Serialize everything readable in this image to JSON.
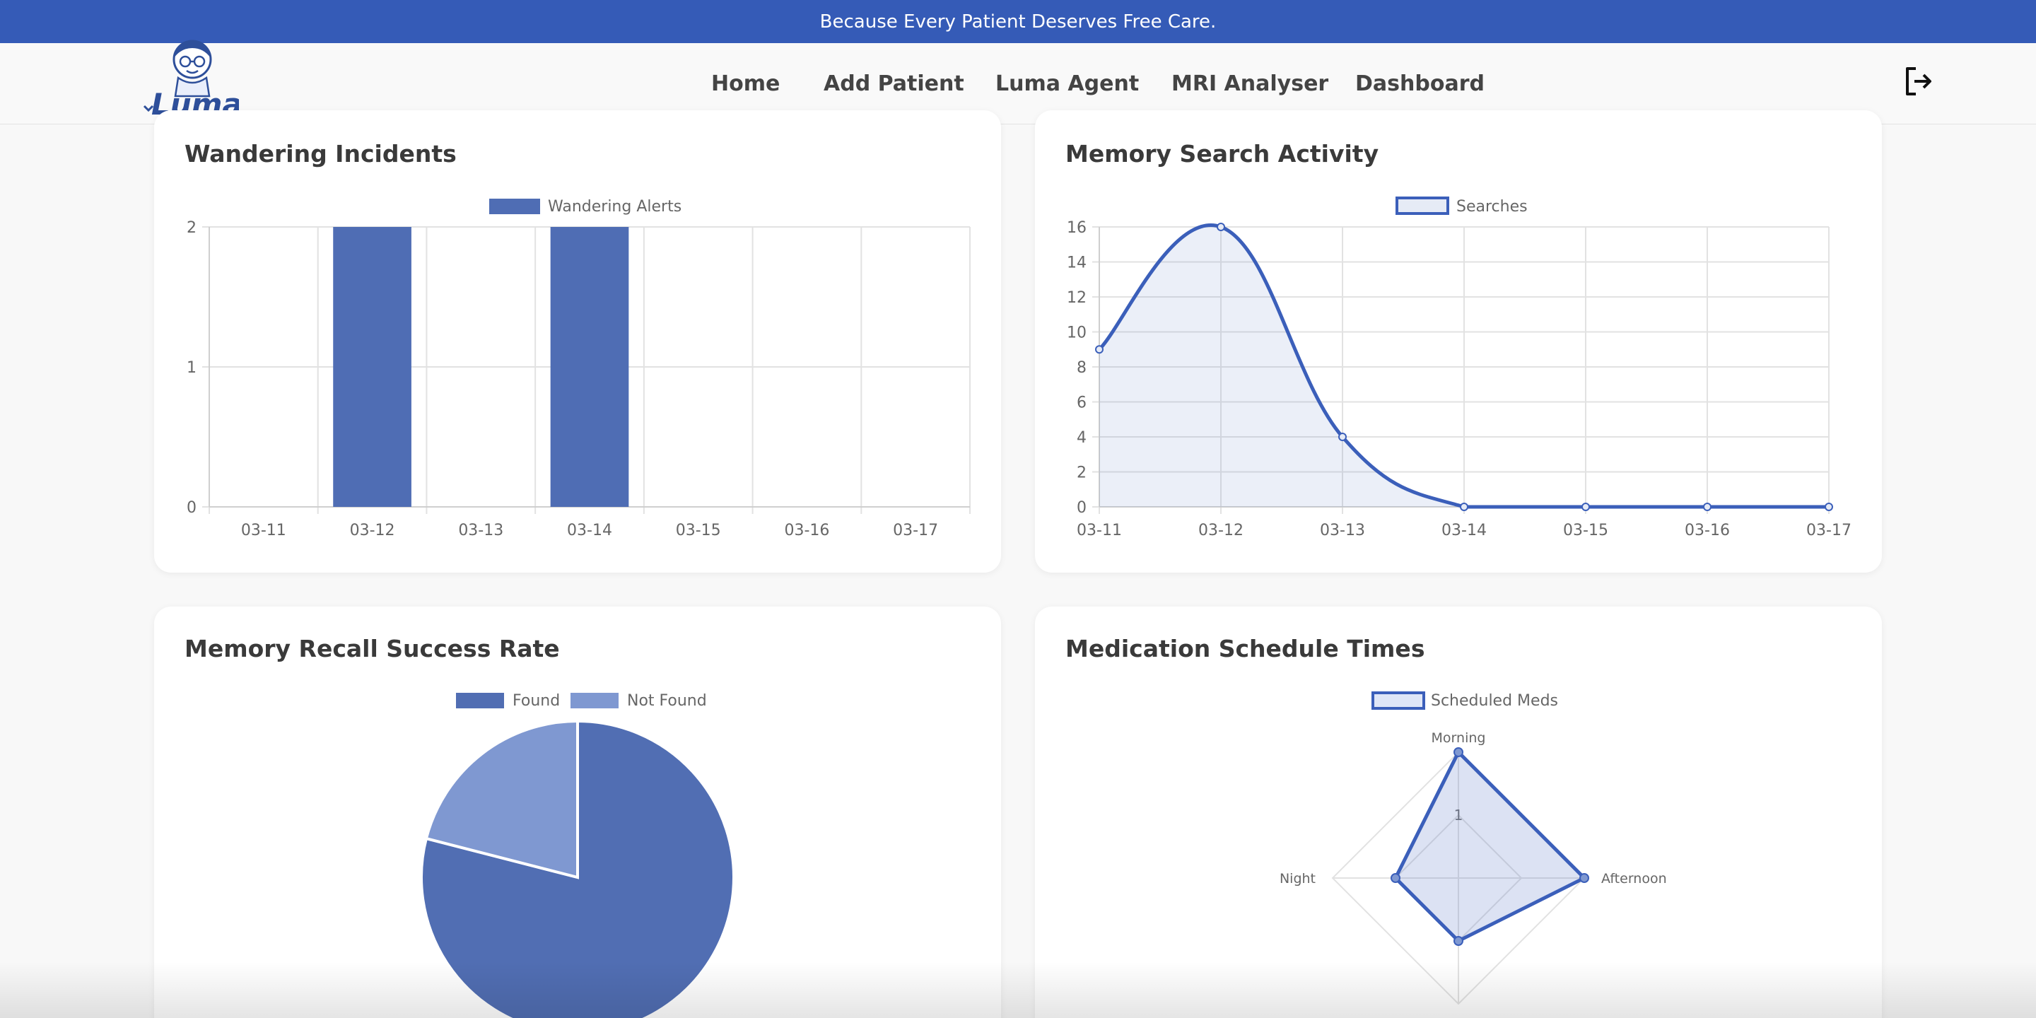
{
  "banner": {
    "text": "Because Every Patient Deserves Free Care."
  },
  "logo": {
    "label": "Luma Ai"
  },
  "nav": {
    "items": [
      "Home",
      "Add Patient",
      "Luma Agent",
      "MRI Analyser",
      "Dashboard"
    ]
  },
  "icons": {
    "logout": "logout-icon"
  },
  "colors": {
    "banner": "#355bb7",
    "bar": "#4f6db4",
    "line": "#3b5fba",
    "pie_found": "#516eb3",
    "pie_not_found": "#7f98d1"
  },
  "cards": {
    "wandering": {
      "title": "Wandering Incidents"
    },
    "searches": {
      "title": "Memory Search Activity"
    },
    "recall": {
      "title": "Memory Recall Success Rate"
    },
    "meds": {
      "title": "Medication Schedule Times"
    }
  },
  "chart_data": [
    {
      "type": "bar",
      "categories": [
        "03-11",
        "03-12",
        "03-13",
        "03-14",
        "03-15",
        "03-16",
        "03-17"
      ],
      "series": [
        {
          "name": "Wandering Alerts",
          "values": [
            0,
            2,
            0,
            2,
            0,
            0,
            0
          ]
        }
      ],
      "ylim": [
        0,
        2
      ],
      "yticks": [
        "0",
        "1",
        "2"
      ],
      "legend": "top",
      "grid": true
    },
    {
      "type": "line",
      "categories": [
        "03-11",
        "03-12",
        "03-13",
        "03-14",
        "03-15",
        "03-16",
        "03-17"
      ],
      "series": [
        {
          "name": "Searches",
          "values": [
            9,
            16,
            4,
            0,
            0,
            0,
            0
          ]
        }
      ],
      "ylim": [
        0,
        16
      ],
      "yticks": [
        "0",
        "2",
        "4",
        "6",
        "8",
        "10",
        "12",
        "14",
        "16"
      ],
      "filled": true,
      "legend": "top",
      "grid": true
    },
    {
      "type": "pie",
      "labels": [
        "Found",
        "Not Found"
      ],
      "values": [
        79,
        21
      ],
      "legend": "top"
    },
    {
      "type": "radar",
      "labels": [
        "Morning",
        "Afternoon",
        "",
        "Night"
      ],
      "series": [
        {
          "name": "Scheduled Meds",
          "values": [
            2,
            2,
            1,
            1
          ]
        }
      ],
      "rmax": 2,
      "rticks": [
        "1"
      ],
      "legend": "top"
    }
  ]
}
